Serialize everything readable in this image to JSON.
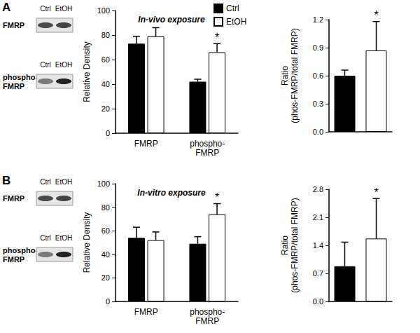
{
  "chart_data": [
    {
      "type": "bar",
      "title": "In-vivo exposure",
      "y_label": "Relative Density",
      "categories": [
        "FMRP",
        "phospho-FMRP"
      ],
      "series": [
        {
          "name": "Ctrl",
          "color": "#000000",
          "values": [
            73,
            42
          ],
          "errors": [
            6,
            2
          ],
          "annotations": [
            null,
            null
          ]
        },
        {
          "name": "EtOH",
          "color": "#ffffff",
          "values": [
            79,
            66
          ],
          "errors": [
            7,
            7
          ],
          "annotations": [
            null,
            "*"
          ]
        }
      ],
      "ylim": [
        0,
        100
      ],
      "yticks": [
        0,
        20,
        40,
        60,
        80,
        100
      ],
      "grid": false,
      "legend": "top"
    },
    {
      "type": "bar",
      "y_label": "Ratio\n(phos-FMRP/total FMRP)",
      "categories": [
        null,
        null
      ],
      "values": [
        0.6,
        0.87
      ],
      "colors": [
        "#000000",
        "#ffffff"
      ],
      "errors": [
        0.06,
        0.31
      ],
      "annotations": [
        null,
        "*"
      ],
      "ylim": [
        0,
        1.2
      ],
      "yticks": [
        {
          "value": 0,
          "label": "0.0"
        },
        0.3,
        0.6,
        0.9,
        1.2
      ],
      "grid": false
    },
    {
      "type": "bar",
      "title": "In-vitro exposure",
      "y_label": "Relative Density",
      "categories": [
        "FMRP",
        "phospho-FMRP"
      ],
      "series": [
        {
          "name": "Ctrl",
          "color": "#000000",
          "values": [
            54,
            49
          ],
          "errors": [
            9,
            6
          ],
          "annotations": [
            null,
            null
          ]
        },
        {
          "name": "EtOH",
          "color": "#ffffff",
          "values": [
            52,
            74
          ],
          "errors": [
            7,
            9
          ],
          "annotations": [
            null,
            "*"
          ]
        }
      ],
      "ylim": [
        0,
        100
      ],
      "yticks": [
        0,
        20,
        40,
        60,
        80,
        100
      ],
      "grid": false
    },
    {
      "type": "bar",
      "y_label": "Ratio\n(phos-FMRP/total FMRP)",
      "categories": [
        null,
        null
      ],
      "values": [
        0.88,
        1.57
      ],
      "colors": [
        "#000000",
        "#ffffff"
      ],
      "errors": [
        0.6,
        1.0
      ],
      "annotations": [
        null,
        "*"
      ],
      "ylim": [
        0,
        2.8
      ],
      "yticks": [
        {
          "value": 0,
          "label": "0.0"
        },
        0.7,
        1.4,
        2.1,
        2.8
      ],
      "grid": false
    }
  ],
  "panels": [
    {
      "label": "A",
      "blots": [
        {
          "lanes": [
            "Ctrl",
            "EtOH"
          ],
          "label": "FMRP"
        },
        {
          "lanes": [
            "Ctrl",
            "EtOH"
          ],
          "label": "phospho-FMRP"
        }
      ]
    },
    {
      "label": "B",
      "blots": [
        {
          "lanes": [
            "Ctrl",
            "EtOH"
          ],
          "label": "FMRP"
        },
        {
          "lanes": [
            "Ctrl",
            "EtOH"
          ],
          "label": "phospho-FMRP"
        }
      ]
    }
  ]
}
